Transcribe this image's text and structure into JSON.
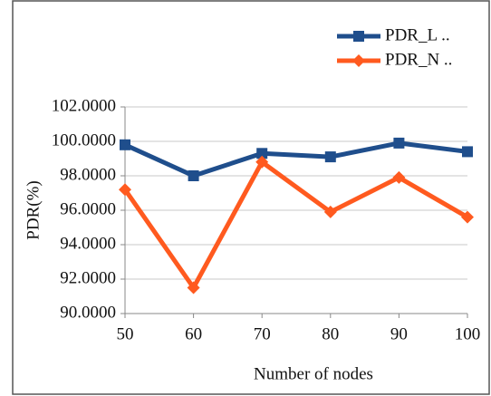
{
  "chart_data": {
    "type": "line",
    "x_label": "Number of nodes",
    "y_label": "PDR(%)",
    "x": [
      50,
      60,
      70,
      80,
      90,
      100
    ],
    "xlim": [
      50,
      100
    ],
    "xticks": [
      50,
      60,
      70,
      80,
      90,
      100
    ],
    "ylim": [
      90,
      102
    ],
    "yticks": [
      {
        "value": 90,
        "label": "90.0000"
      },
      {
        "value": 92,
        "label": "92.0000"
      },
      {
        "value": 94,
        "label": "94.0000"
      },
      {
        "value": 96,
        "label": "96.0000"
      },
      {
        "value": 98,
        "label": "98.0000"
      },
      {
        "value": 100,
        "label": "100.0000"
      },
      {
        "value": 102,
        "label": "102.0000"
      }
    ],
    "grid": true,
    "legend": "top-right",
    "series": [
      {
        "name": "PDR_L ..",
        "color": "#1f4e8c",
        "marker": "square",
        "values": [
          99.8,
          98.0,
          99.3,
          99.1,
          99.9,
          99.4
        ]
      },
      {
        "name": "PDR_N ..",
        "color": "#ff5a1f",
        "marker": "diamond",
        "values": [
          97.2,
          91.5,
          98.8,
          95.9,
          97.9,
          95.6
        ]
      }
    ]
  }
}
